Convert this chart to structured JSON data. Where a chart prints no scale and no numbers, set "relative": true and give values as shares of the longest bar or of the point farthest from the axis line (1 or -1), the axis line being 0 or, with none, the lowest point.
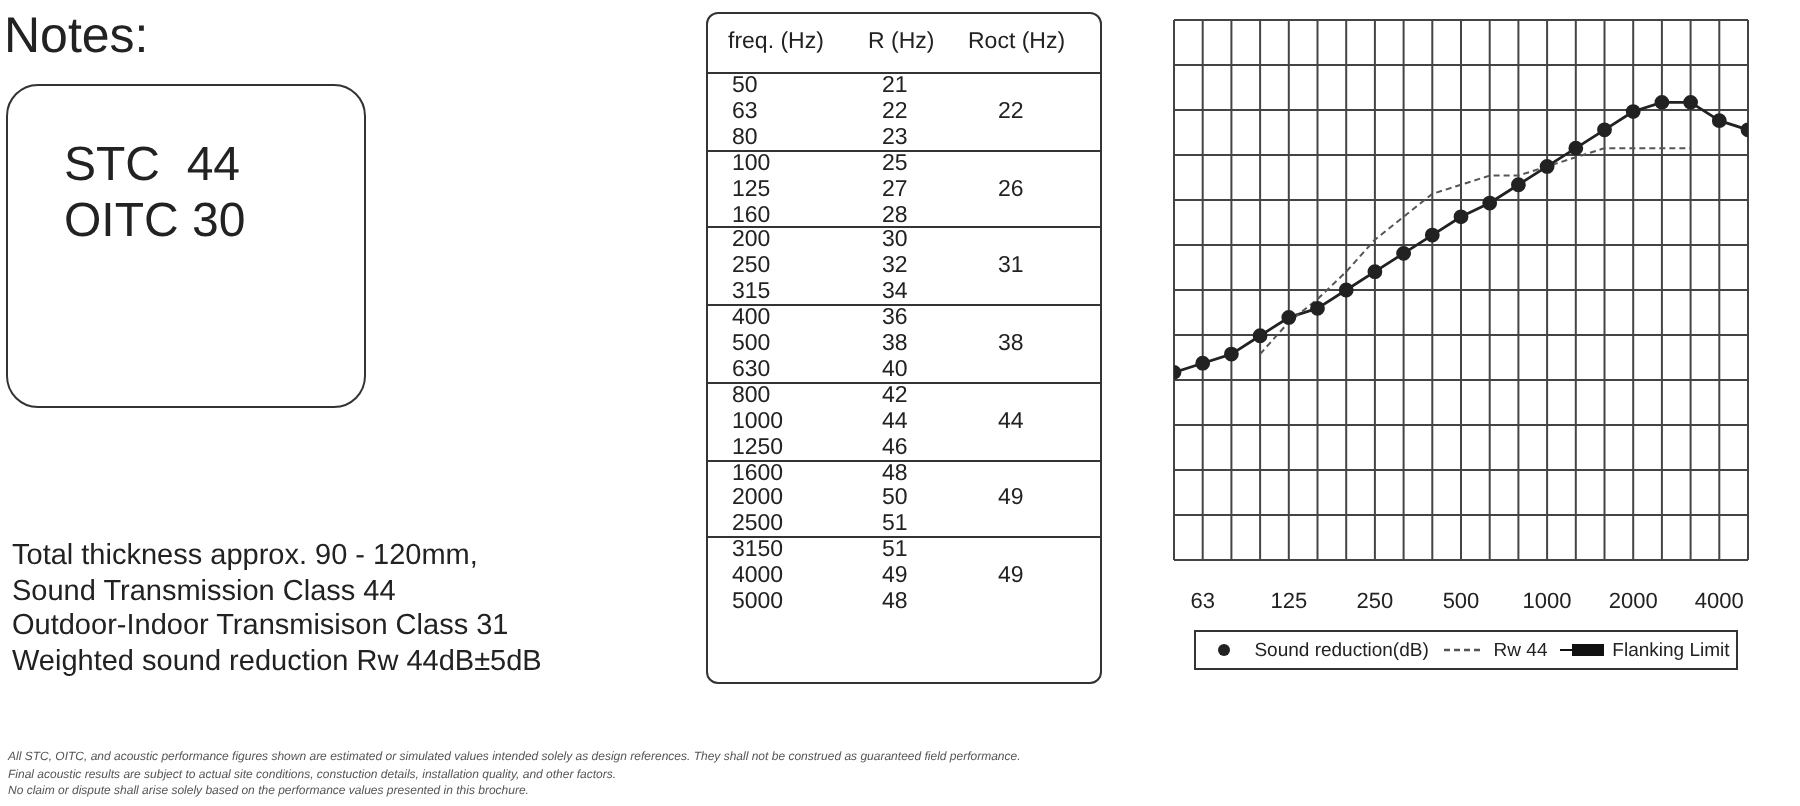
{
  "chart_data": [
    {
      "type": "other",
      "title": "Notes:",
      "annotations": [
        "STC  44",
        "OITC 30",
        "Total thickness approx. 90 - 120mm,",
        "Sound Transmission Class 44",
        "Outdoor-Indoor Transmisison Class 31",
        "Weighted sound reduction Rw 44dB±5dB",
        "All STC, OITC, and acoustic performance figures shown are estimated or simulated values intended solely as design references. They shall not be construed as guaranteed field performance.",
        "Final acoustic results are subject to actual site conditions, constuction details, installation quality, and other factors.",
        "No claim or dispute shall arise solely based on the performance values presented in this brochure."
      ]
    },
    {
      "type": "heatmap",
      "ylabel": "freq. (Hz)",
      "categories": [
        "R (Hz)",
        "Roct (Hz)"
      ],
      "y_categories": [
        "50",
        "63",
        "80",
        "100",
        "125",
        "160",
        "200",
        "250",
        "315",
        "400",
        "500",
        "630",
        "800",
        "1000",
        "1250",
        "1600",
        "2000",
        "2500",
        "3150",
        "4000",
        "5000"
      ],
      "data_labels": true,
      "cells": [
        [
          21,
          null
        ],
        [
          22,
          22
        ],
        [
          23,
          null
        ],
        [
          25,
          null
        ],
        [
          27,
          26
        ],
        [
          28,
          null
        ],
        [
          30,
          null
        ],
        [
          32,
          31
        ],
        [
          34,
          null
        ],
        [
          36,
          null
        ],
        [
          38,
          38
        ],
        [
          40,
          null
        ],
        [
          42,
          null
        ],
        [
          44,
          44
        ],
        [
          46,
          null
        ],
        [
          48,
          null
        ],
        [
          50,
          49
        ],
        [
          51,
          null
        ],
        [
          51,
          null
        ],
        [
          49,
          49
        ],
        [
          48,
          null
        ]
      ]
    },
    {
      "type": "line",
      "relative": true,
      "categories": [
        null,
        "63",
        null,
        null,
        "125",
        null,
        null,
        "250",
        null,
        null,
        "500",
        null,
        null,
        "1000",
        null,
        null,
        "2000",
        null,
        null,
        "4000",
        null
      ],
      "series": [
        {
          "name": "Sound reduction(dB)",
          "color": "#222222",
          "marker": "circle",
          "line_style": "solid",
          "values": [
            0.41,
            0.43,
            0.45,
            0.49,
            0.53,
            0.55,
            0.59,
            0.63,
            0.67,
            0.71,
            0.75,
            0.78,
            0.82,
            0.86,
            0.9,
            0.94,
            0.98,
            1,
            1,
            0.96,
            0.94
          ]
        },
        {
          "name": "Rw 44",
          "color": "#555555",
          "marker": "none",
          "line_style": "dashed",
          "values": [
            null,
            null,
            null,
            0.45,
            0.52,
            0.57,
            0.63,
            0.7,
            0.75,
            0.8,
            0.82,
            0.84,
            0.84,
            0.86,
            0.88,
            0.9,
            0.9,
            0.9,
            0.9,
            null,
            null
          ]
        },
        {
          "name": "Flanking Limit",
          "color": "#111111",
          "marker": "square",
          "line_style": "solid",
          "values": [
            null,
            null,
            null,
            null,
            null,
            null,
            null,
            null,
            null,
            null,
            null,
            null,
            null,
            null,
            null,
            null,
            null,
            null,
            null,
            null,
            null
          ]
        }
      ],
      "grid": true,
      "legend": "bottom"
    }
  ]
}
